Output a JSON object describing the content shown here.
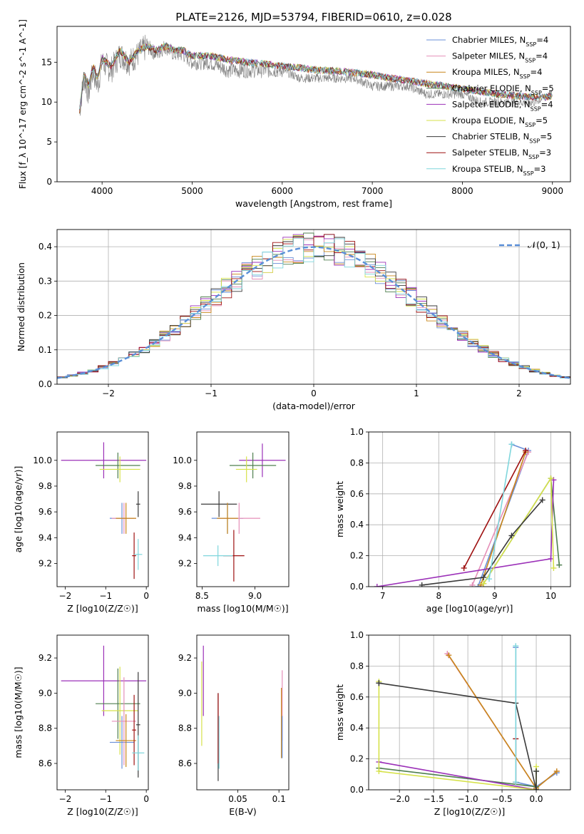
{
  "figure": {
    "title": "PLATE=2126, MJD=53794, FIBERID=0610, z=0.028"
  },
  "models": [
    {
      "name": "Chabrier MILES",
      "nssp": "4",
      "color": "#6a8fd8"
    },
    {
      "name": "Salpeter MILES",
      "nssp": "4",
      "color": "#e58fb8"
    },
    {
      "name": "Kroupa MILES",
      "nssp": "4",
      "color": "#c8861a"
    },
    {
      "name": "Chabrier ELODIE",
      "nssp": "5",
      "color": "#4f7f4f"
    },
    {
      "name": "Salpeter ELODIE",
      "nssp": "4",
      "color": "#9b30b8"
    },
    {
      "name": "Kroupa ELODIE",
      "nssp": "5",
      "color": "#d6e24a"
    },
    {
      "name": "Chabrier STELIB",
      "nssp": "5",
      "color": "#3a3a3a"
    },
    {
      "name": "Salpeter STELIB",
      "nssp": "3",
      "color": "#9e1010"
    },
    {
      "name": "Kroupa STELIB",
      "nssp": "3",
      "color": "#7fd6dc"
    }
  ],
  "chart_data": [
    {
      "id": "spectrum",
      "type": "line",
      "xlabel": "wavelength [Angstrom, rest frame]",
      "ylabel": "Flux [f_λ 10^-17 erg cm^-2 s^-1 A^-1]",
      "xlim": [
        3500,
        9200
      ],
      "ylim": [
        0,
        19.5
      ],
      "xticks": [
        4000,
        5000,
        6000,
        7000,
        8000,
        9000
      ],
      "yticks": [
        0,
        5,
        10,
        15
      ],
      "grid": false,
      "legend": "top-right",
      "data_series": {
        "name": "data",
        "color": "#808080",
        "x": [
          3750,
          3800,
          3850,
          3900,
          3950,
          4000,
          4100,
          4200,
          4300,
          4400,
          4500,
          4600,
          4700,
          4800,
          4900,
          5000,
          5200,
          5400,
          5600,
          5800,
          6000,
          6200,
          6400,
          6600,
          6800,
          7000,
          7200,
          7400,
          7600,
          7800,
          8000,
          8200,
          8400,
          8600,
          8800,
          9000
        ],
        "y": [
          9,
          13,
          11,
          14,
          12,
          15,
          14,
          16,
          15,
          16,
          17,
          16,
          17,
          16,
          16,
          15,
          15,
          14,
          14,
          14,
          14,
          13,
          13,
          13,
          13,
          12,
          12,
          12,
          11,
          11,
          11,
          10,
          10,
          10,
          10,
          11
        ]
      },
      "model_curve": {
        "x": [
          3750,
          3800,
          3850,
          3900,
          3950,
          4000,
          4100,
          4200,
          4300,
          4400,
          4500,
          4600,
          4700,
          4800,
          4900,
          5000,
          5200,
          5400,
          5600,
          5800,
          6000,
          6200,
          6400,
          6600,
          6800,
          7000,
          7200,
          7400,
          7600,
          7800,
          8000,
          8200,
          8400,
          8600,
          8800,
          9000
        ],
        "y": [
          9,
          13.5,
          12,
          14.5,
          13,
          15.5,
          14.5,
          16.5,
          15,
          16.5,
          17,
          16.5,
          17,
          16.5,
          16.5,
          15.8,
          15.8,
          15.3,
          15,
          14.8,
          14.5,
          14.3,
          14,
          13.9,
          13.7,
          13.4,
          13,
          12.7,
          12.3,
          12,
          11.7,
          11.3,
          11,
          10.8,
          10.6,
          10.7
        ]
      }
    },
    {
      "id": "residuals",
      "type": "histogram",
      "xlabel": "(data-model)/error",
      "ylabel": "Normed distribution",
      "xlim": [
        -2.5,
        2.5
      ],
      "ylim": [
        0,
        0.45
      ],
      "xticks": [
        -2,
        -1,
        0,
        1,
        2
      ],
      "yticks": [
        0.0,
        0.1,
        0.2,
        0.3,
        0.4
      ],
      "grid": true,
      "legend": "top-right",
      "gaussian": {
        "label": "𝒩(0, 1)",
        "mean": 0,
        "sigma": 1,
        "color": "#5a8fd8"
      }
    },
    {
      "id": "age_vs_Z",
      "type": "errorbar",
      "xlabel": "Z [log10(Z/Z☉)]",
      "ylabel": "age [log10(age/yr)]",
      "xlim": [
        -2.2,
        0.05
      ],
      "ylim": [
        9.02,
        10.22
      ],
      "xticks": [
        -2,
        -1,
        0
      ],
      "yticks": [
        9.2,
        9.4,
        9.6,
        9.8,
        10.0
      ],
      "grid": false,
      "points": [
        {
          "model": 4,
          "x": -1.05,
          "xerr": 1.05,
          "y": 10.0,
          "yerr": 0.14
        },
        {
          "model": 3,
          "x": -0.7,
          "xerr": 0.55,
          "y": 9.96,
          "yerr": 0.1
        },
        {
          "model": 5,
          "x": -0.65,
          "xerr": 0.5,
          "y": 9.93,
          "yerr": 0.1
        },
        {
          "model": 6,
          "x": -0.2,
          "xerr": 0.05,
          "y": 9.66,
          "yerr": 0.1
        },
        {
          "model": 0,
          "x": -0.6,
          "xerr": 0.3,
          "y": 9.55,
          "yerr": 0.12
        },
        {
          "model": 1,
          "x": -0.55,
          "xerr": 0.3,
          "y": 9.55,
          "yerr": 0.12
        },
        {
          "model": 2,
          "x": -0.5,
          "xerr": 0.25,
          "y": 9.55,
          "yerr": 0.12
        },
        {
          "model": 7,
          "x": -0.3,
          "xerr": 0.05,
          "y": 9.26,
          "yerr": 0.18
        },
        {
          "model": 8,
          "x": -0.2,
          "xerr": 0.1,
          "y": 9.27,
          "yerr": 0.12
        }
      ]
    },
    {
      "id": "age_vs_mass",
      "type": "errorbar",
      "xlabel": "mass [log10(M/M☉)]",
      "ylabel": "",
      "xlim": [
        8.45,
        9.32
      ],
      "ylim": [
        9.02,
        10.22
      ],
      "xticks": [
        8.5,
        9.0
      ],
      "yticks": [
        9.2,
        9.4,
        9.6,
        9.8,
        10.0
      ],
      "grid": false,
      "points": [
        {
          "model": 4,
          "x": 9.07,
          "xerr": 0.22,
          "y": 10.0,
          "yerr": 0.13
        },
        {
          "model": 3,
          "x": 8.98,
          "xerr": 0.22,
          "y": 9.96,
          "yerr": 0.1
        },
        {
          "model": 5,
          "x": 8.92,
          "xerr": 0.1,
          "y": 9.93,
          "yerr": 0.1
        },
        {
          "model": 6,
          "x": 8.66,
          "xerr": 0.17,
          "y": 9.66,
          "yerr": 0.1
        },
        {
          "model": 0,
          "x": 8.74,
          "xerr": 0.15,
          "y": 9.55,
          "yerr": 0.12
        },
        {
          "model": 1,
          "x": 8.85,
          "xerr": 0.2,
          "y": 9.55,
          "yerr": 0.12
        },
        {
          "model": 2,
          "x": 8.74,
          "xerr": 0.1,
          "y": 9.55,
          "yerr": 0.12
        },
        {
          "model": 7,
          "x": 8.8,
          "xerr": 0.1,
          "y": 9.26,
          "yerr": 0.2
        },
        {
          "model": 8,
          "x": 8.65,
          "xerr": 0.14,
          "y": 9.26,
          "yerr": 0.08
        }
      ]
    },
    {
      "id": "weight_vs_age",
      "type": "line",
      "xlabel": "age [log10(age/yr)]",
      "ylabel": "mass weight",
      "xlim": [
        6.75,
        10.35
      ],
      "ylim": [
        0,
        1.0
      ],
      "xticks": [
        7,
        8,
        9,
        10
      ],
      "yticks": [
        0.0,
        0.2,
        0.4,
        0.6,
        0.8,
        1.0
      ],
      "grid": true,
      "series": [
        {
          "model": 0,
          "x": [
            8.7,
            9.6,
            9.3
          ],
          "y": [
            0.0,
            0.88,
            0.92
          ]
        },
        {
          "model": 1,
          "x": [
            8.6,
            9.6
          ],
          "y": [
            0.01,
            0.87
          ]
        },
        {
          "model": 2,
          "x": [
            8.75,
            9.55
          ],
          "y": [
            0.01,
            0.87
          ]
        },
        {
          "model": 3,
          "x": [
            8.8,
            10.0,
            10.15
          ],
          "y": [
            0.02,
            0.7,
            0.14
          ]
        },
        {
          "model": 4,
          "x": [
            6.9,
            10.0,
            10.05
          ],
          "y": [
            0.0,
            0.18,
            0.69
          ]
        },
        {
          "model": 5,
          "x": [
            8.8,
            10.0,
            10.05
          ],
          "y": [
            0.02,
            0.7,
            0.12
          ]
        },
        {
          "model": 6,
          "x": [
            7.7,
            8.8,
            9.3,
            9.85
          ],
          "y": [
            0.01,
            0.06,
            0.33,
            0.56
          ]
        },
        {
          "model": 7,
          "x": [
            8.45,
            9.55
          ],
          "y": [
            0.12,
            0.88
          ]
        },
        {
          "model": 8,
          "x": [
            8.9,
            9.3
          ],
          "y": [
            0.05,
            0.92
          ]
        }
      ]
    },
    {
      "id": "mass_vs_Z",
      "type": "errorbar",
      "xlabel": "Z [log10(Z/Z☉)]",
      "ylabel": "mass [log10(M/M☉)]",
      "xlim": [
        -2.2,
        0.05
      ],
      "ylim": [
        8.45,
        9.33
      ],
      "xticks": [
        -2,
        -1,
        0
      ],
      "yticks": [
        8.6,
        8.8,
        9.0,
        9.2
      ],
      "grid": false,
      "points": [
        {
          "model": 4,
          "x": -1.05,
          "xerr": 1.05,
          "y": 9.07,
          "yerr": 0.2
        },
        {
          "model": 3,
          "x": -0.7,
          "xerr": 0.55,
          "y": 8.94,
          "yerr": 0.2
        },
        {
          "model": 5,
          "x": -0.65,
          "xerr": 0.45,
          "y": 8.9,
          "yerr": 0.25
        },
        {
          "model": 6,
          "x": -0.2,
          "xerr": 0.05,
          "y": 8.82,
          "yerr": 0.3
        },
        {
          "model": 0,
          "x": -0.6,
          "xerr": 0.3,
          "y": 8.72,
          "yerr": 0.15
        },
        {
          "model": 1,
          "x": -0.55,
          "xerr": 0.3,
          "y": 8.84,
          "yerr": 0.25
        },
        {
          "model": 2,
          "x": -0.5,
          "xerr": 0.25,
          "y": 8.73,
          "yerr": 0.15
        },
        {
          "model": 7,
          "x": -0.3,
          "xerr": 0.05,
          "y": 8.79,
          "yerr": 0.2
        },
        {
          "model": 8,
          "x": -0.2,
          "xerr": 0.15,
          "y": 8.66,
          "yerr": 0.1
        }
      ]
    },
    {
      "id": "mass_vs_ebv",
      "type": "errorbar",
      "xlabel": "E(B-V)",
      "ylabel": "",
      "xlim": [
        0.0,
        0.112
      ],
      "ylim": [
        8.45,
        9.33
      ],
      "xticks": [
        0.05,
        0.1
      ],
      "yticks": [
        8.6,
        8.8,
        9.0,
        9.2
      ],
      "grid": false,
      "points": [
        {
          "model": 4,
          "x": 0.008,
          "xerr": 0,
          "y": 9.07,
          "yerr": 0.2
        },
        {
          "model": 5,
          "x": 0.006,
          "xerr": 0,
          "y": 8.94,
          "yerr": 0.24
        },
        {
          "model": 6,
          "x": 0.026,
          "xerr": 0,
          "y": 8.75,
          "yerr": 0.25
        },
        {
          "model": 7,
          "x": 0.026,
          "xerr": 0,
          "y": 8.8,
          "yerr": 0.2
        },
        {
          "model": 8,
          "x": 0.027,
          "xerr": 0,
          "y": 8.72,
          "yerr": 0.15
        },
        {
          "model": 1,
          "x": 0.104,
          "xerr": 0,
          "y": 8.93,
          "yerr": 0.2
        },
        {
          "model": 2,
          "x": 0.103,
          "xerr": 0,
          "y": 8.83,
          "yerr": 0.2
        },
        {
          "model": 0,
          "x": 0.104,
          "xerr": 0,
          "y": 8.75,
          "yerr": 0.12
        }
      ]
    },
    {
      "id": "weight_vs_Z",
      "type": "line",
      "xlabel": "Z [log10(Z/Z☉)]",
      "ylabel": "mass weight",
      "xlim": [
        -2.45,
        0.5
      ],
      "ylim": [
        0,
        1.0
      ],
      "xticks": [
        -2.0,
        -1.5,
        -1.0,
        -0.5,
        0.0
      ],
      "yticks": [
        0.0,
        0.2,
        0.4,
        0.6,
        0.8,
        1.0
      ],
      "grid": true,
      "series": [
        {
          "model": 0,
          "x": [
            -0.3,
            -0.3,
            0.0,
            0.3
          ],
          "y": [
            0.92,
            0.05,
            0.02,
            0.11
          ]
        },
        {
          "model": 1,
          "x": [
            -1.3,
            0.0,
            0.3
          ],
          "y": [
            0.88,
            0.01,
            0.12
          ]
        },
        {
          "model": 2,
          "x": [
            -1.28,
            0.0,
            0.3
          ],
          "y": [
            0.87,
            0.01,
            0.12
          ]
        },
        {
          "model": 3,
          "x": [
            -2.3,
            0.0,
            0.0
          ],
          "y": [
            0.14,
            0.02,
            0.12
          ]
        },
        {
          "model": 4,
          "x": [
            -2.3,
            0.0,
            0.0
          ],
          "y": [
            0.18,
            0.0,
            0.0
          ]
        },
        {
          "model": 5,
          "x": [
            -2.3,
            -2.3,
            0.0,
            0.0
          ],
          "y": [
            0.7,
            0.12,
            0.0,
            0.15
          ]
        },
        {
          "model": 6,
          "x": [
            -2.3,
            -2.3,
            -0.3,
            0.0,
            0.0
          ],
          "y": [
            0.69,
            0.69,
            0.56,
            0.0,
            0.12
          ]
        },
        {
          "model": 7,
          "x": [
            -0.3,
            -0.3
          ],
          "y": [
            0.05,
            0.33
          ]
        },
        {
          "model": 8,
          "x": [
            -0.3,
            -0.3
          ],
          "y": [
            0.93,
            0.05
          ]
        }
      ]
    }
  ]
}
